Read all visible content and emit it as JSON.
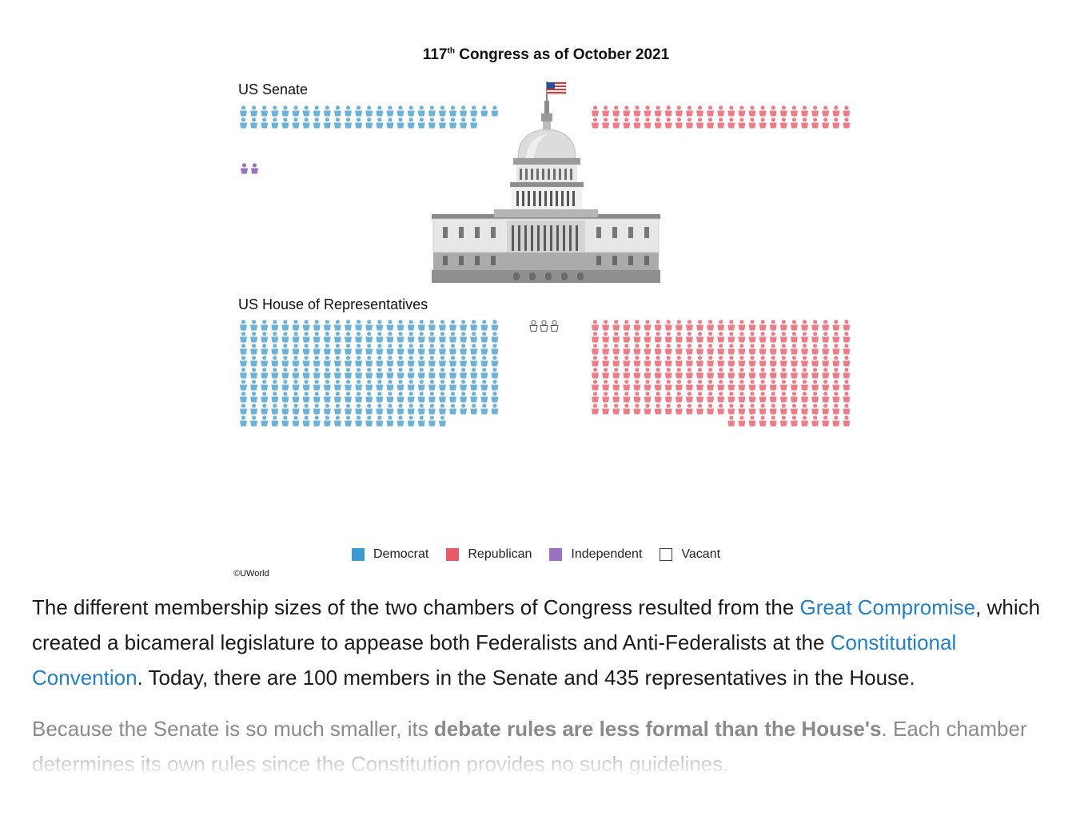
{
  "figure": {
    "title_main": "117",
    "title_sup": "th",
    "title_rest": " Congress as of October 2021",
    "senate_label": "US Senate",
    "house_label": "US House of Representatives",
    "credit": "©UWorld",
    "colors": {
      "democrat": "#6ab2d8",
      "republican": "#ee7b86",
      "independent": "#9a72c0",
      "vacant": "#ffffff"
    },
    "icons": [
      "capitol-building-icon",
      "american-flag-icon",
      "person-icon"
    ]
  },
  "chart_data": {
    "type": "table",
    "title": "117th Congress as of October 2021",
    "legend": [
      "Democrat",
      "Republican",
      "Independent",
      "Vacant"
    ],
    "legend_colors": [
      "#3d9ad0",
      "#e85a69",
      "#9a72c0",
      "#ffffff"
    ],
    "chambers": [
      {
        "name": "US Senate",
        "Democrat": 48,
        "Republican": 50,
        "Independent": 2,
        "Vacant": 0
      },
      {
        "name": "US House of Representatives",
        "Democrat": 220,
        "Republican": 212,
        "Independent": 0,
        "Vacant": 3
      }
    ]
  },
  "text": {
    "p1_a": "The different membership sizes of the two chambers of Congress resulted from the ",
    "p1_link1": "Great Compromise",
    "p1_b": ", which created a bicameral legislature to appease both Federalists and Anti-Federalists at the ",
    "p1_link2": "Constitutional Convention",
    "p1_c": ".  Today, there are 100 members in the Senate and 435 representatives in the House.",
    "p2_a": "Because the Senate is so much smaller, its ",
    "p2_bold": "debate rules are less formal than the House's",
    "p2_b": ".  Each chamber determines its own rules since the Constitution provides no such guidelines."
  }
}
